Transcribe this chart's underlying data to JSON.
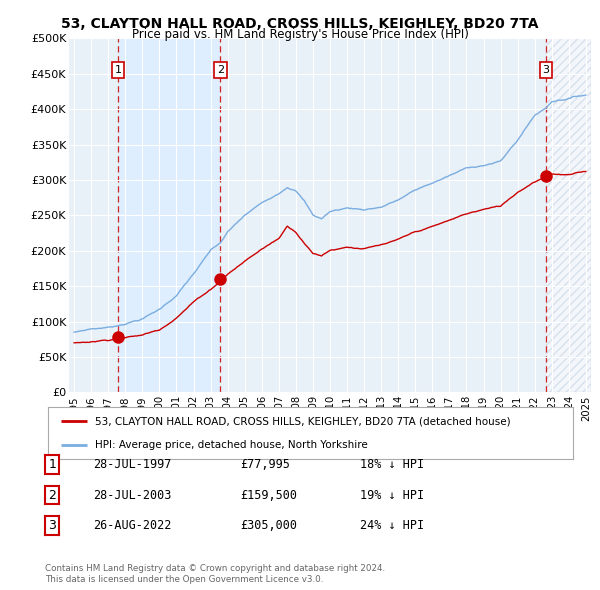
{
  "title": "53, CLAYTON HALL ROAD, CROSS HILLS, KEIGHLEY, BD20 7TA",
  "subtitle": "Price paid vs. HM Land Registry's House Price Index (HPI)",
  "sales": [
    {
      "num": 1,
      "date_str": "28-JUL-1997",
      "year": 1997.57,
      "price": 77995,
      "pct": "18% ↓ HPI"
    },
    {
      "num": 2,
      "date_str": "28-JUL-2003",
      "year": 2003.57,
      "price": 159500,
      "pct": "19% ↓ HPI"
    },
    {
      "num": 3,
      "date_str": "26-AUG-2022",
      "year": 2022.65,
      "price": 305000,
      "pct": "24% ↓ HPI"
    }
  ],
  "legend_property": "53, CLAYTON HALL ROAD, CROSS HILLS, KEIGHLEY, BD20 7TA (detached house)",
  "legend_hpi": "HPI: Average price, detached house, North Yorkshire",
  "footer1": "Contains HM Land Registry data © Crown copyright and database right 2024.",
  "footer2": "This data is licensed under the Open Government Licence v3.0.",
  "ylim": [
    0,
    500000
  ],
  "xlim": [
    1994.7,
    2025.3
  ],
  "yticks": [
    0,
    50000,
    100000,
    150000,
    200000,
    250000,
    300000,
    350000,
    400000,
    450000,
    500000
  ],
  "ytick_labels": [
    "£0",
    "£50K",
    "£100K",
    "£150K",
    "£200K",
    "£250K",
    "£300K",
    "£350K",
    "£400K",
    "£450K",
    "£500K"
  ],
  "xticks": [
    1995,
    1996,
    1997,
    1998,
    1999,
    2000,
    2001,
    2002,
    2003,
    2004,
    2005,
    2006,
    2007,
    2008,
    2009,
    2010,
    2011,
    2012,
    2013,
    2014,
    2015,
    2016,
    2017,
    2018,
    2019,
    2020,
    2021,
    2022,
    2023,
    2024,
    2025
  ],
  "red_color": "#cc0000",
  "blue_color": "#7aade0",
  "shade_color": "#ddeeff",
  "plot_bg": "#e8f0f8"
}
